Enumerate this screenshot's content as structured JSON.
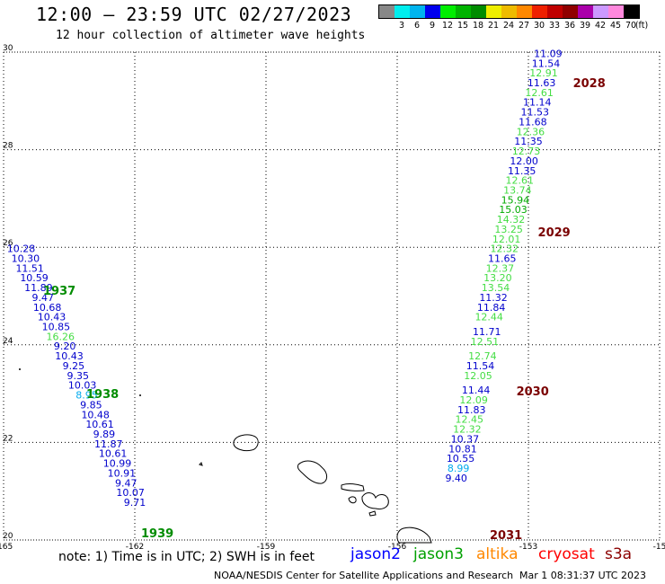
{
  "title": "12:00 — 23:59 UTC 02/27/2023",
  "subtitle": "12 hour collection of altimeter wave heights",
  "legend": {
    "unit": "(ft)",
    "bins": [
      {
        "label": "",
        "color": "#888888"
      },
      {
        "label": "3",
        "color": "#00eeee"
      },
      {
        "label": "6",
        "color": "#00b4ee"
      },
      {
        "label": "9",
        "color": "#0000ee"
      },
      {
        "label": "12",
        "color": "#00ee00"
      },
      {
        "label": "15",
        "color": "#00b400"
      },
      {
        "label": "18",
        "color": "#008c00"
      },
      {
        "label": "21",
        "color": "#eeee00"
      },
      {
        "label": "24",
        "color": "#eebb00"
      },
      {
        "label": "27",
        "color": "#ff8800"
      },
      {
        "label": "30",
        "color": "#ee2000"
      },
      {
        "label": "33",
        "color": "#c00000"
      },
      {
        "label": "36",
        "color": "#900000"
      },
      {
        "label": "39",
        "color": "#aa00aa"
      },
      {
        "label": "42",
        "color": "#cc99ff"
      },
      {
        "label": "45",
        "color": "#ff88dd"
      },
      {
        "label": "70",
        "color": "#000000"
      }
    ]
  },
  "axes": {
    "lat_labels": [
      "30",
      "28",
      "26",
      "24",
      "22",
      "20"
    ],
    "lon_labels": [
      "-165",
      "-162",
      "-159",
      "-156",
      "-153",
      "-15"
    ]
  },
  "tracks": [
    {
      "time": "2028",
      "time_color": "#7a0000",
      "points": [
        {
          "lon": -152.55,
          "lat": 29.9,
          "v": "11.09",
          "c": "#0000cc"
        },
        {
          "lon": -152.6,
          "lat": 29.7,
          "v": "11.54",
          "c": "#0000cc"
        },
        {
          "lon": -152.65,
          "lat": 29.5,
          "v": "12.91",
          "c": "#44dd44"
        },
        {
          "lon": -152.7,
          "lat": 29.3,
          "v": "11.63",
          "c": "#0000cc"
        },
        {
          "lon": -152.75,
          "lat": 29.1,
          "v": "12.61",
          "c": "#44dd44"
        },
        {
          "lon": -152.8,
          "lat": 28.9,
          "v": "11.14",
          "c": "#0000cc"
        },
        {
          "lon": -152.85,
          "lat": 28.7,
          "v": "11.53",
          "c": "#0000cc"
        },
        {
          "lon": -152.9,
          "lat": 28.5,
          "v": "11.68",
          "c": "#0000cc"
        },
        {
          "lon": -152.95,
          "lat": 28.3,
          "v": "12.36",
          "c": "#44dd44"
        },
        {
          "lon": -153.0,
          "lat": 28.1,
          "v": "11.35",
          "c": "#0000cc"
        },
        {
          "lon": -153.05,
          "lat": 27.9,
          "v": "12.73",
          "c": "#44dd44"
        },
        {
          "lon": -153.1,
          "lat": 27.7,
          "v": "12.00",
          "c": "#0000cc"
        },
        {
          "lon": -153.15,
          "lat": 27.5,
          "v": "11.35",
          "c": "#0000cc"
        },
        {
          "lon": -153.2,
          "lat": 27.3,
          "v": "12.61",
          "c": "#44dd44"
        },
        {
          "lon": -153.25,
          "lat": 27.1,
          "v": "13.74",
          "c": "#44dd44"
        },
        {
          "lon": -153.3,
          "lat": 26.9,
          "v": "15.94",
          "c": "#00aa00"
        },
        {
          "lon": -153.35,
          "lat": 26.7,
          "v": "15.03",
          "c": "#00aa00"
        },
        {
          "lon": -153.4,
          "lat": 26.5,
          "v": "14.32",
          "c": "#44dd44"
        }
      ]
    },
    {
      "time": "2029",
      "time_color": "#7a0000",
      "points": [
        {
          "lon": -153.45,
          "lat": 26.3,
          "v": "13.25",
          "c": "#44dd44"
        },
        {
          "lon": -153.5,
          "lat": 26.1,
          "v": "12.01",
          "c": "#44dd44"
        },
        {
          "lon": -153.55,
          "lat": 25.9,
          "v": "12.32",
          "c": "#44dd44"
        },
        {
          "lon": -153.6,
          "lat": 25.7,
          "v": "11.65",
          "c": "#0000cc"
        },
        {
          "lon": -153.65,
          "lat": 25.5,
          "v": "12.37",
          "c": "#44dd44"
        },
        {
          "lon": -153.7,
          "lat": 25.3,
          "v": "13.20",
          "c": "#44dd44"
        },
        {
          "lon": -153.75,
          "lat": 25.1,
          "v": "13.54",
          "c": "#44dd44"
        },
        {
          "lon": -153.8,
          "lat": 24.9,
          "v": "11.32",
          "c": "#0000cc"
        },
        {
          "lon": -153.85,
          "lat": 24.7,
          "v": "11.84",
          "c": "#0000cc"
        },
        {
          "lon": -153.9,
          "lat": 24.5,
          "v": "12.44",
          "c": "#44dd44"
        },
        {
          "lon": -153.95,
          "lat": 24.2,
          "v": "11.71",
          "c": "#0000cc"
        },
        {
          "lon": -154.0,
          "lat": 24.0,
          "v": "12.51",
          "c": "#44dd44"
        },
        {
          "lon": -154.05,
          "lat": 23.7,
          "v": "12.74",
          "c": "#44dd44"
        },
        {
          "lon": -154.1,
          "lat": 23.5,
          "v": "11.54",
          "c": "#0000cc"
        },
        {
          "lon": -154.15,
          "lat": 23.3,
          "v": "12.05",
          "c": "#44dd44"
        }
      ]
    },
    {
      "time": "2030",
      "time_color": "#7a0000",
      "points": [
        {
          "lon": -154.2,
          "lat": 23.0,
          "v": "11.44",
          "c": "#0000cc"
        },
        {
          "lon": -154.25,
          "lat": 22.8,
          "v": "12.09",
          "c": "#44dd44"
        },
        {
          "lon": -154.3,
          "lat": 22.6,
          "v": "11.83",
          "c": "#0000cc"
        },
        {
          "lon": -154.35,
          "lat": 22.4,
          "v": "12.45",
          "c": "#44dd44"
        },
        {
          "lon": -154.4,
          "lat": 22.2,
          "v": "12.32",
          "c": "#44dd44"
        },
        {
          "lon": -154.45,
          "lat": 22.0,
          "v": "10.37",
          "c": "#0000cc"
        },
        {
          "lon": -154.5,
          "lat": 21.8,
          "v": "10.81",
          "c": "#0000cc"
        },
        {
          "lon": -154.55,
          "lat": 21.6,
          "v": "10.55",
          "c": "#0000cc"
        },
        {
          "lon": -154.6,
          "lat": 21.4,
          "v": "8.99",
          "c": "#00aaee"
        },
        {
          "lon": -154.65,
          "lat": 21.2,
          "v": "9.40",
          "c": "#0000cc"
        }
      ]
    },
    {
      "time": "2031",
      "time_color": "#7a0000",
      "points": []
    },
    {
      "time": "1937",
      "time_color": "#008c00",
      "points": [
        {
          "lon": -164.6,
          "lat": 25.9,
          "v": "10.28",
          "c": "#0000cc"
        },
        {
          "lon": -164.5,
          "lat": 25.7,
          "v": "10.30",
          "c": "#0000cc"
        },
        {
          "lon": -164.4,
          "lat": 25.5,
          "v": "11.51",
          "c": "#0000cc"
        },
        {
          "lon": -164.3,
          "lat": 25.3,
          "v": "10.59",
          "c": "#0000cc"
        },
        {
          "lon": -164.2,
          "lat": 25.1,
          "v": "11.89",
          "c": "#0000cc"
        },
        {
          "lon": -164.1,
          "lat": 24.9,
          "v": "9.47",
          "c": "#0000cc"
        },
        {
          "lon": -164.0,
          "lat": 24.7,
          "v": "10.68",
          "c": "#0000cc"
        },
        {
          "lon": -163.9,
          "lat": 24.5,
          "v": "10.43",
          "c": "#0000cc"
        },
        {
          "lon": -163.8,
          "lat": 24.3,
          "v": "10.85",
          "c": "#0000cc"
        },
        {
          "lon": -163.7,
          "lat": 24.1,
          "v": "16.26",
          "c": "#44dd44"
        },
        {
          "lon": -163.6,
          "lat": 23.9,
          "v": "9.20",
          "c": "#0000cc"
        },
        {
          "lon": -163.5,
          "lat": 23.7,
          "v": "10.43",
          "c": "#0000cc"
        }
      ]
    },
    {
      "time": "1938",
      "time_color": "#008c00",
      "points": [
        {
          "lon": -163.4,
          "lat": 23.5,
          "v": "9.25",
          "c": "#0000cc"
        },
        {
          "lon": -163.3,
          "lat": 23.3,
          "v": "9.35",
          "c": "#0000cc"
        },
        {
          "lon": -163.2,
          "lat": 23.1,
          "v": "10.03",
          "c": "#0000cc"
        },
        {
          "lon": -163.1,
          "lat": 22.9,
          "v": "8.95",
          "c": "#00aaee"
        },
        {
          "lon": -163.0,
          "lat": 22.7,
          "v": "9.85",
          "c": "#0000cc"
        },
        {
          "lon": -162.9,
          "lat": 22.5,
          "v": "10.48",
          "c": "#0000cc"
        },
        {
          "lon": -162.8,
          "lat": 22.3,
          "v": "10.61",
          "c": "#0000cc"
        },
        {
          "lon": -162.7,
          "lat": 22.1,
          "v": "9.89",
          "c": "#0000cc"
        },
        {
          "lon": -162.6,
          "lat": 21.9,
          "v": "11.87",
          "c": "#0000cc"
        },
        {
          "lon": -162.5,
          "lat": 21.7,
          "v": "10.61",
          "c": "#0000cc"
        },
        {
          "lon": -162.4,
          "lat": 21.5,
          "v": "10.99",
          "c": "#0000cc"
        },
        {
          "lon": -162.3,
          "lat": 21.3,
          "v": "10.91",
          "c": "#0000cc"
        },
        {
          "lon": -162.2,
          "lat": 21.1,
          "v": "9.47",
          "c": "#0000cc"
        },
        {
          "lon": -162.1,
          "lat": 20.9,
          "v": "10.07",
          "c": "#0000cc"
        },
        {
          "lon": -162.0,
          "lat": 20.7,
          "v": "9.71",
          "c": "#0000cc"
        }
      ]
    },
    {
      "time": "1939",
      "time_color": "#008c00",
      "points": []
    }
  ],
  "footer": {
    "note": "note:  1) Time is in UTC;  2) SWH is in feet",
    "satellites": [
      {
        "name": "jason2",
        "color": "#0000ff"
      },
      {
        "name": "jason3",
        "color": "#00a000"
      },
      {
        "name": "altika",
        "color": "#ff8800"
      },
      {
        "name": "cryosat",
        "color": "#ff0000"
      },
      {
        "name": "s3a",
        "color": "#8b0000"
      }
    ],
    "credit": "NOAA/NESDIS Center for Satellite Applications and Research",
    "timestamp": "Mar  1 08:31:37 UTC 2023"
  }
}
